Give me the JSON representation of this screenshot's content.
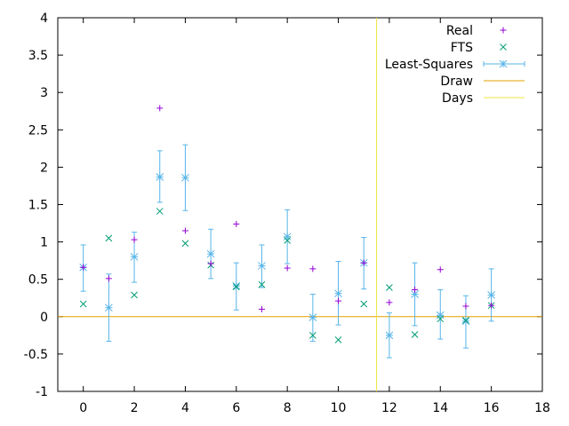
{
  "chart_data": {
    "type": "scatter",
    "title": "",
    "xlabel": "",
    "ylabel": "",
    "xlim": [
      -1,
      18
    ],
    "ylim": [
      -1,
      4
    ],
    "xticks": [
      "0",
      "2",
      "4",
      "6",
      "8",
      "10",
      "12",
      "14",
      "16",
      "18"
    ],
    "yticks": [
      "-1",
      "-0.5",
      "0",
      "0.5",
      "1",
      "1.5",
      "2",
      "2.5",
      "3",
      "3.5",
      "4"
    ],
    "grid": false,
    "legend_position": "top-right",
    "series": [
      {
        "name": "Real",
        "marker": "plus",
        "color": "#9400d3",
        "x": [
          0,
          1,
          2,
          3,
          4,
          5,
          6,
          7,
          8,
          9,
          10,
          11,
          12,
          13,
          14,
          15,
          16
        ],
        "y": [
          0.66,
          0.51,
          1.03,
          2.79,
          1.15,
          0.71,
          1.24,
          0.1,
          0.65,
          0.64,
          0.21,
          0.72,
          0.19,
          0.36,
          0.63,
          0.14,
          0.15
        ]
      },
      {
        "name": "FTS",
        "marker": "cross",
        "color": "#009e73",
        "x": [
          0,
          1,
          2,
          3,
          4,
          5,
          6,
          7,
          8,
          9,
          10,
          11,
          12,
          13,
          14,
          15,
          16
        ],
        "y": [
          0.17,
          1.05,
          0.29,
          1.41,
          0.98,
          0.69,
          0.4,
          0.43,
          1.02,
          -0.25,
          -0.31,
          0.17,
          0.39,
          -0.24,
          -0.03,
          -0.05,
          0.15
        ]
      },
      {
        "name": "Least-Squares",
        "marker": "star-errorbar",
        "color": "#56b4e9",
        "x": [
          0,
          1,
          2,
          3,
          4,
          5,
          6,
          7,
          8,
          9,
          10,
          11,
          12,
          13,
          14,
          15,
          16
        ],
        "y": [
          0.66,
          0.12,
          0.8,
          1.87,
          1.86,
          0.84,
          0.41,
          0.68,
          1.07,
          -0.01,
          0.31,
          0.72,
          -0.25,
          0.3,
          0.02,
          -0.06,
          0.29
        ],
        "ylow": [
          0.34,
          -0.33,
          0.46,
          1.53,
          1.42,
          0.51,
          0.09,
          0.39,
          0.71,
          -0.33,
          -0.11,
          0.37,
          -0.55,
          -0.12,
          -0.3,
          -0.42,
          -0.06
        ],
        "yhigh": [
          0.96,
          0.57,
          1.13,
          2.22,
          2.3,
          1.17,
          0.72,
          0.96,
          1.43,
          0.3,
          0.74,
          1.06,
          0.05,
          0.72,
          0.36,
          0.28,
          0.64
        ]
      },
      {
        "name": "Draw",
        "marker": "hline",
        "color": "#e69f00",
        "y": 0
      },
      {
        "name": "Days",
        "marker": "vline",
        "color": "#f0e442",
        "x": 11.5
      }
    ]
  }
}
